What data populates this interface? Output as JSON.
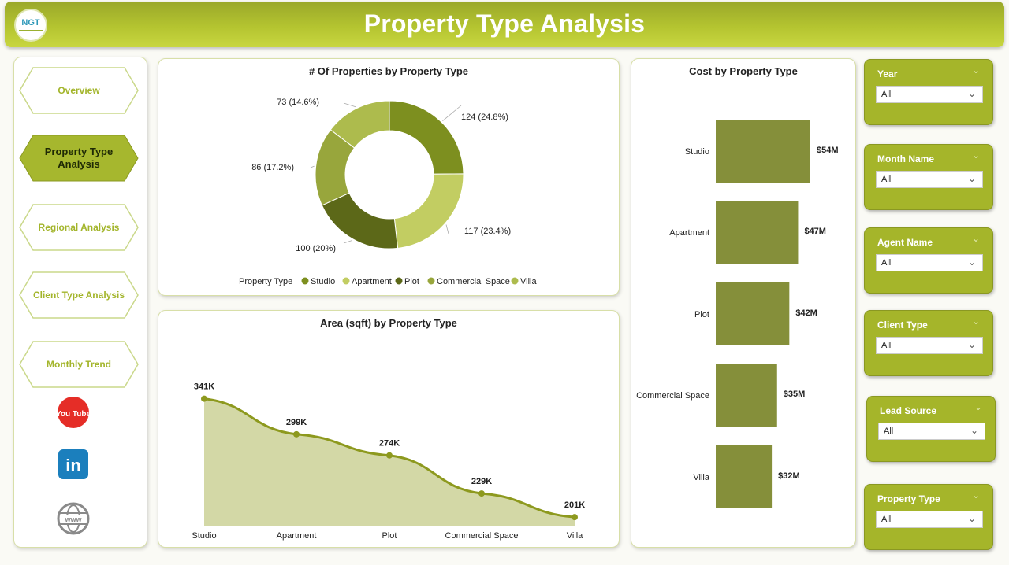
{
  "header": {
    "title": "Property Type Analysis",
    "logo_text": "NGT"
  },
  "nav": {
    "items": [
      {
        "label": "Overview",
        "active": false
      },
      {
        "label": "Property Type Analysis",
        "active": true
      },
      {
        "label": "Regional Analysis",
        "active": false
      },
      {
        "label": "Client Type Analysis",
        "active": false
      },
      {
        "label": "Monthly Trend",
        "active": false
      }
    ],
    "social": [
      {
        "icon": "youtube-icon",
        "text": "You Tube",
        "color": "#e52d27"
      },
      {
        "icon": "linkedin-icon",
        "text": "in",
        "color": "#1b7fbd"
      },
      {
        "icon": "website-icon",
        "text": "www",
        "color": "#8a8a8a"
      }
    ]
  },
  "filters": [
    {
      "label": "Year",
      "value": "All"
    },
    {
      "label": "Month Name",
      "value": "All"
    },
    {
      "label": "Agent Name",
      "value": "All"
    },
    {
      "label": "Client Type",
      "value": "All"
    },
    {
      "label": "Lead Source",
      "value": "All"
    },
    {
      "label": "Property Type",
      "value": "All"
    }
  ],
  "colors": {
    "accent": "#a5b52a",
    "bar": "#858f3a"
  },
  "chart_data": [
    {
      "type": "pie",
      "title": "# Of Properties by Property Type",
      "legend_title": "Property Type",
      "legend_position": "bottom",
      "categories": [
        "Studio",
        "Apartment",
        "Plot",
        "Commercial Space",
        "Villa"
      ],
      "values": [
        124,
        117,
        100,
        86,
        73
      ],
      "labels": [
        "124 (24.8%)",
        "117 (23.4%)",
        "100 (20%)",
        "86 (17.2%)",
        "73 (14.6%)"
      ],
      "colors": [
        "#7d8f1f",
        "#c2cd62",
        "#5c6818",
        "#98a63c",
        "#adbb4d"
      ]
    },
    {
      "type": "area",
      "title": "Area (sqft) by Property Type",
      "categories": [
        "Studio",
        "Apartment",
        "Plot",
        "Commercial Space",
        "Villa"
      ],
      "values": [
        341,
        299,
        274,
        229,
        201
      ],
      "labels": [
        "341K",
        "299K",
        "274K",
        "229K",
        "201K"
      ],
      "ylim": [
        190,
        350
      ]
    },
    {
      "type": "bar",
      "orientation": "horizontal",
      "title": "Cost by Property Type",
      "categories": [
        "Studio",
        "Apartment",
        "Plot",
        "Commercial Space",
        "Villa"
      ],
      "values": [
        54,
        47,
        42,
        35,
        32
      ],
      "labels": [
        "$54M",
        "$47M",
        "$42M",
        "$35M",
        "$32M"
      ],
      "xlim": [
        0,
        54
      ]
    }
  ]
}
